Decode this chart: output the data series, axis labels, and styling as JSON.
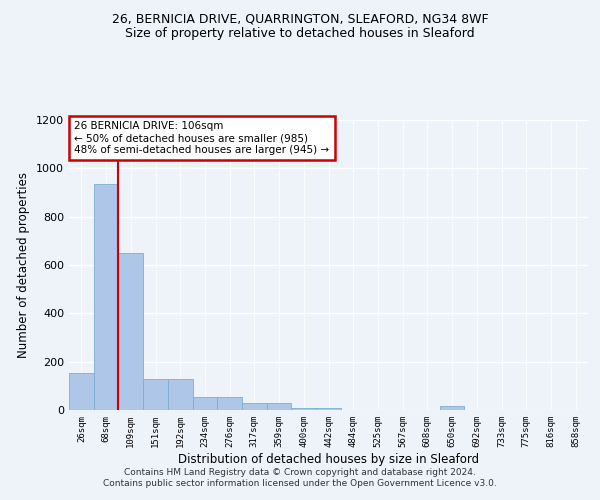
{
  "title1": "26, BERNICIA DRIVE, QUARRINGTON, SLEAFORD, NG34 8WF",
  "title2": "Size of property relative to detached houses in Sleaford",
  "xlabel": "Distribution of detached houses by size in Sleaford",
  "ylabel": "Number of detached properties",
  "footer1": "Contains HM Land Registry data © Crown copyright and database right 2024.",
  "footer2": "Contains public sector information licensed under the Open Government Licence v3.0.",
  "annotation_line1": "26 BERNICIA DRIVE: 106sqm",
  "annotation_line2": "← 50% of detached houses are smaller (985)",
  "annotation_line3": "48% of semi-detached houses are larger (945) →",
  "bar_labels": [
    "26sqm",
    "68sqm",
    "109sqm",
    "151sqm",
    "192sqm",
    "234sqm",
    "276sqm",
    "317sqm",
    "359sqm",
    "400sqm",
    "442sqm",
    "484sqm",
    "525sqm",
    "567sqm",
    "608sqm",
    "650sqm",
    "692sqm",
    "733sqm",
    "775sqm",
    "816sqm",
    "858sqm"
  ],
  "bar_heights": [
    155,
    935,
    650,
    130,
    130,
    55,
    55,
    30,
    30,
    10,
    10,
    0,
    0,
    0,
    0,
    15,
    0,
    0,
    0,
    0,
    0
  ],
  "bar_color": "#aec6e8",
  "bar_edge_color": "#7aafd4",
  "red_line_x": 2,
  "red_line_color": "#cc0000",
  "ylim": [
    0,
    1200
  ],
  "yticks": [
    0,
    200,
    400,
    600,
    800,
    1000,
    1200
  ],
  "bg_color": "#eef2f9",
  "annotation_box_color": "#ffffff",
  "annotation_box_edge": "#cc0000",
  "title1_fontsize": 9,
  "title2_fontsize": 9,
  "xlabel_fontsize": 8.5,
  "ylabel_fontsize": 8.5,
  "footer_fontsize": 6.5
}
